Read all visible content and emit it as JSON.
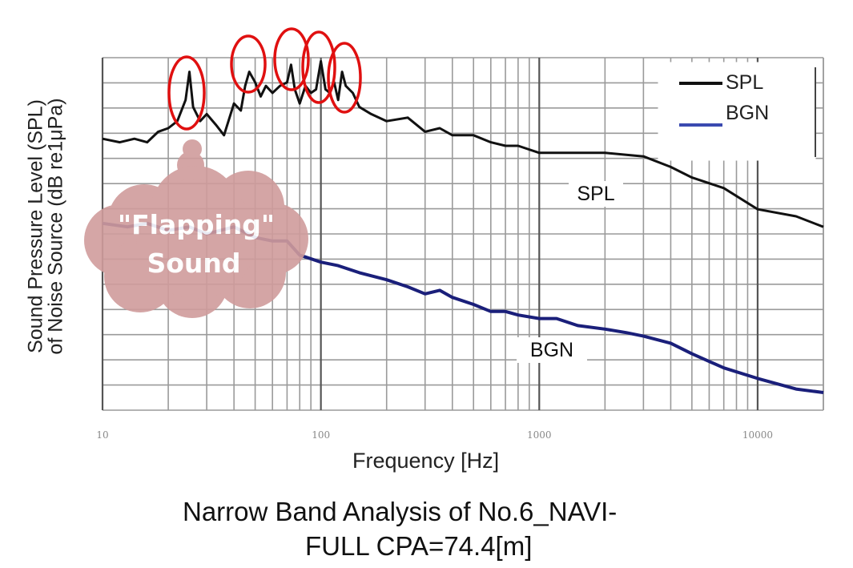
{
  "chart_data": {
    "type": "line",
    "xscale": "log",
    "xlim": [
      10,
      20000
    ],
    "ylim": [
      0,
      1
    ],
    "y_ticks_labeled": false,
    "xlabel": "Frequency [Hz]",
    "ylabel_lines": [
      "Sound Pressure Level (SPL)",
      "of Noise Source (dB re1μPa)"
    ],
    "x_tick_labels": [
      {
        "value": 10,
        "label": "10"
      },
      {
        "value": 100,
        "label": "100"
      },
      {
        "value": 1000,
        "label": "1000"
      },
      {
        "value": 10000,
        "label": "10000"
      }
    ],
    "grid": true,
    "legend": {
      "placement": "top-right",
      "entries": [
        {
          "name": "SPL",
          "color": "#111111"
        },
        {
          "name": "BGN",
          "color": "#3a4ab0"
        }
      ]
    },
    "series": [
      {
        "name": "SPL",
        "color": "#111111",
        "x": [
          10,
          12,
          14,
          16,
          18,
          20,
          22,
          24,
          25,
          26,
          28,
          30,
          33,
          36,
          40,
          43,
          45,
          47,
          50,
          53,
          56,
          60,
          65,
          70,
          73,
          76,
          80,
          85,
          90,
          95,
          100,
          105,
          110,
          115,
          120,
          125,
          130,
          140,
          150,
          170,
          200,
          250,
          300,
          350,
          400,
          500,
          600,
          700,
          800,
          1000,
          1500,
          2000,
          3000,
          4000,
          5000,
          7000,
          10000,
          15000,
          20000
        ],
        "y": [
          0.77,
          0.76,
          0.77,
          0.76,
          0.79,
          0.8,
          0.82,
          0.88,
          0.96,
          0.86,
          0.82,
          0.84,
          0.81,
          0.78,
          0.87,
          0.85,
          0.92,
          0.96,
          0.93,
          0.89,
          0.92,
          0.9,
          0.92,
          0.93,
          0.98,
          0.91,
          0.87,
          0.92,
          0.9,
          0.91,
          0.99,
          0.91,
          0.9,
          0.93,
          0.88,
          0.96,
          0.92,
          0.9,
          0.86,
          0.84,
          0.82,
          0.83,
          0.79,
          0.8,
          0.78,
          0.78,
          0.76,
          0.75,
          0.75,
          0.73,
          0.73,
          0.73,
          0.72,
          0.69,
          0.66,
          0.63,
          0.57,
          0.55,
          0.52
        ]
      },
      {
        "name": "BGN",
        "color": "#1a1f7a",
        "x": [
          10,
          13,
          16,
          20,
          25,
          30,
          40,
          50,
          60,
          70,
          80,
          100,
          120,
          150,
          200,
          250,
          300,
          350,
          400,
          500,
          600,
          700,
          800,
          1000,
          1200,
          1500,
          2000,
          2500,
          3000,
          4000,
          5000,
          7000,
          10000,
          15000,
          20000
        ],
        "y": [
          0.53,
          0.52,
          0.53,
          0.51,
          0.52,
          0.5,
          0.52,
          0.49,
          0.48,
          0.48,
          0.44,
          0.42,
          0.41,
          0.39,
          0.37,
          0.35,
          0.33,
          0.34,
          0.32,
          0.3,
          0.28,
          0.28,
          0.27,
          0.26,
          0.26,
          0.24,
          0.23,
          0.22,
          0.21,
          0.19,
          0.16,
          0.12,
          0.09,
          0.06,
          0.05
        ]
      }
    ],
    "annotations": [
      {
        "text": "SPL",
        "x": 500,
        "y": 0.665
      },
      {
        "text": "BGN",
        "x": 320,
        "y": 0.18
      },
      {
        "text": "\"Flapping\"",
        "x": 15,
        "y": 0.56
      },
      {
        "text": "Sound",
        "x": 15,
        "y": 0.45
      }
    ],
    "highlight_circles_x": [
      25,
      45,
      70,
      90,
      120
    ]
  },
  "title_lines": [
    "Narrow Band Analysis of No.6_NAVI-",
    "FULL  CPA=74.4[m]"
  ],
  "colors": {
    "grid": "#9a9a9a",
    "grid_major": "#555555",
    "circle": "#e01010",
    "cloud": "#d09c9c",
    "cloud_text": "#ffffff"
  }
}
